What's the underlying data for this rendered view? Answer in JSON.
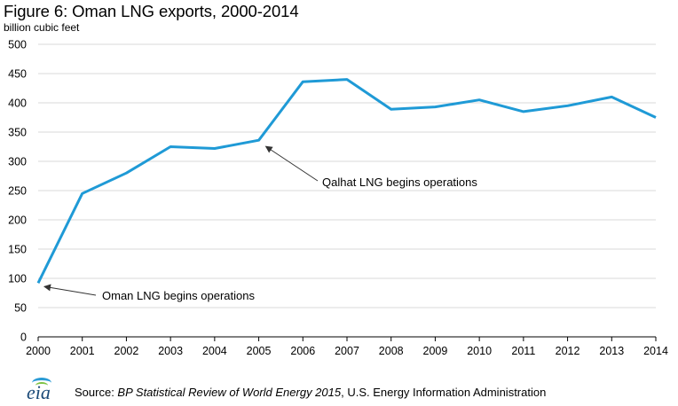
{
  "chart_data": {
    "type": "line",
    "title": "Figure 6: Oman LNG exports, 2000-2014",
    "ylabel": "billion cubic feet",
    "xlabel": "",
    "ylim": [
      0,
      500
    ],
    "yticks": [
      0,
      50,
      100,
      150,
      200,
      250,
      300,
      350,
      400,
      450,
      500
    ],
    "categories": [
      "2000",
      "2001",
      "2002",
      "2003",
      "2004",
      "2005",
      "2006",
      "2007",
      "2008",
      "2009",
      "2010",
      "2011",
      "2012",
      "2013",
      "2014"
    ],
    "series": [
      {
        "values": [
          92,
          245,
          280,
          325,
          322,
          336,
          436,
          440,
          389,
          393,
          405,
          385,
          395,
          410,
          375
        ]
      }
    ],
    "grid": "horizontal",
    "color": "#1f9ad6",
    "annotations": [
      {
        "text": "Oman LNG begins operations",
        "x": "2000",
        "y": 92
      },
      {
        "text": "Qalhat LNG begins operations",
        "x": "2005",
        "y": 336
      }
    ]
  },
  "footer": {
    "logo": "eia",
    "source_prefix": "Source: ",
    "source_italic": "BP Statistical Review of World Energy 2015",
    "source_suffix": ", U.S. Energy Information Administration"
  }
}
